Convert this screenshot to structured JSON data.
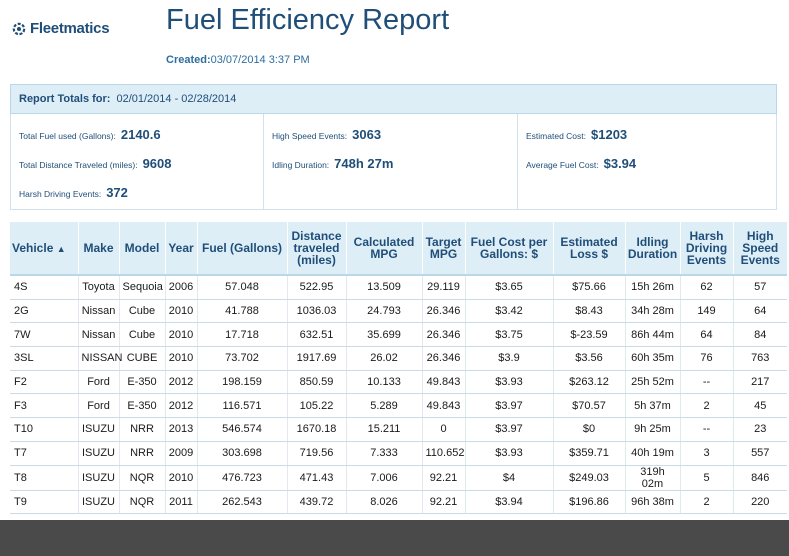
{
  "brand": {
    "name": "Fleetmatics",
    "icon": "gear-logo-icon",
    "color": "#1f4e79"
  },
  "report": {
    "title": "Fuel Efficiency Report",
    "created_label": "Created:",
    "created_value": "03/07/2014 3:37 PM"
  },
  "totals": {
    "label": "Report Totals for:",
    "range": "02/01/2014 - 02/28/2014",
    "fuel_label": "Total Fuel used (Gallons):",
    "fuel_value": "2140.6",
    "distance_label": "Total Distance Traveled (miles):",
    "distance_value": "9608",
    "harsh_label": "Harsh Driving Events:",
    "harsh_value": "372",
    "high_speed_label": "High Speed Events:",
    "high_speed_value": "3063",
    "idling_label": "Idling Duration:",
    "idling_value": "748h 27m",
    "est_cost_label": "Estimated Cost:",
    "est_cost_value": "$1203",
    "avg_fuel_label": "Average Fuel Cost:",
    "avg_fuel_value": "$3.94"
  },
  "table": {
    "sort_icon": "▲",
    "headers": [
      "Vehicle",
      "Make",
      "Model",
      "Year",
      "Fuel (Gallons)",
      "Distance traveled (miles)",
      "Calculated MPG",
      "Target MPG",
      "Fuel Cost per Gallons: $",
      "Estimated Loss $",
      "Idling Duration",
      "Harsh Driving Events",
      "High Speed Events"
    ],
    "rows": [
      [
        "4S",
        "Toyota",
        "Sequoia",
        "2006",
        "57.048",
        "522.95",
        "13.509",
        "29.119",
        "$3.65",
        "$75.66",
        "15h 26m",
        "62",
        "57"
      ],
      [
        "2G",
        "Nissan",
        "Cube",
        "2010",
        "41.788",
        "1036.03",
        "24.793",
        "26.346",
        "$3.42",
        "$8.43",
        "34h 28m",
        "149",
        "64"
      ],
      [
        "7W",
        "Nissan",
        "Cube",
        "2010",
        "17.718",
        "632.51",
        "35.699",
        "26.346",
        "$3.75",
        "$-23.59",
        "86h 44m",
        "64",
        "84"
      ],
      [
        "3SL",
        "NISSAN",
        "CUBE",
        "2010",
        "73.702",
        "1917.69",
        "26.02",
        "26.346",
        "$3.9",
        "$3.56",
        "60h 35m",
        "76",
        "763"
      ],
      [
        "F2",
        "Ford",
        "E-350",
        "2012",
        "198.159",
        "850.59",
        "10.133",
        "49.843",
        "$3.93",
        "$263.12",
        "25h 52m",
        "--",
        "217"
      ],
      [
        "F3",
        "Ford",
        "E-350",
        "2012",
        "116.571",
        "105.22",
        "5.289",
        "49.843",
        "$3.97",
        "$70.57",
        "5h 37m",
        "2",
        "45"
      ],
      [
        "T10",
        "ISUZU",
        "NRR",
        "2013",
        "546.574",
        "1670.18",
        "15.211",
        "0",
        "$3.97",
        "$0",
        "9h 25m",
        "--",
        "23"
      ],
      [
        "T7",
        "ISUZU",
        "NRR",
        "2009",
        "303.698",
        "719.56",
        "7.333",
        "110.652",
        "$3.93",
        "$359.71",
        "40h 19m",
        "3",
        "557"
      ],
      [
        "T8",
        "ISUZU",
        "NQR",
        "2010",
        "476.723",
        "471.43",
        "7.006",
        "92.21",
        "$4",
        "$249.03",
        "319h 02m",
        "5",
        "846"
      ],
      [
        "T9",
        "ISUZU",
        "NQR",
        "2011",
        "262.543",
        "439.72",
        "8.026",
        "92.21",
        "$3.94",
        "$196.86",
        "96h 38m",
        "2",
        "220"
      ]
    ]
  }
}
